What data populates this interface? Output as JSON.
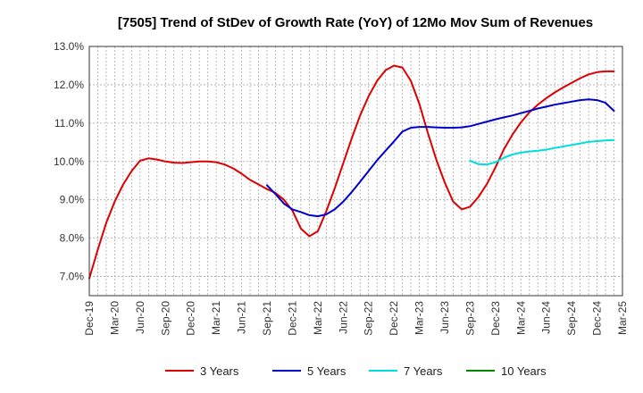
{
  "chart_data": {
    "type": "line",
    "title": "[7505]  Trend of StDev of Growth Rate (YoY) of 12Mo Mov Sum of Revenues",
    "xlabel": "",
    "ylabel": "",
    "ylim": [
      6.5,
      13.0
    ],
    "y_ticks": [
      7.0,
      8.0,
      9.0,
      10.0,
      11.0,
      12.0,
      13.0
    ],
    "y_tick_labels": [
      "7.0%",
      "8.0%",
      "9.0%",
      "10.0%",
      "11.0%",
      "12.0%",
      "13.0%"
    ],
    "x_tick_labels": [
      "Dec-19",
      "Mar-20",
      "Jun-20",
      "Sep-20",
      "Dec-20",
      "Mar-21",
      "Jun-21",
      "Sep-21",
      "Dec-21",
      "Mar-22",
      "Jun-22",
      "Sep-22",
      "Dec-22",
      "Mar-23",
      "Jun-23",
      "Sep-23",
      "Dec-23",
      "Mar-24",
      "Jun-24",
      "Sep-24",
      "Dec-24",
      "Mar-25"
    ],
    "x_unit": "months since Dec-19",
    "grid": true,
    "legend_position": "bottom",
    "series": [
      {
        "name": "3 Years",
        "color": "#dd0000",
        "points": [
          [
            0,
            6.95
          ],
          [
            1,
            7.7
          ],
          [
            2,
            8.4
          ],
          [
            3,
            8.95
          ],
          [
            4,
            9.4
          ],
          [
            5,
            9.75
          ],
          [
            6,
            10.02
          ],
          [
            7,
            10.08
          ],
          [
            8,
            10.05
          ],
          [
            9,
            10.0
          ],
          [
            10,
            9.97
          ],
          [
            11,
            9.96
          ],
          [
            12,
            9.98
          ],
          [
            13,
            10.0
          ],
          [
            14,
            10.0
          ],
          [
            15,
            9.98
          ],
          [
            16,
            9.92
          ],
          [
            17,
            9.82
          ],
          [
            18,
            9.68
          ],
          [
            19,
            9.52
          ],
          [
            20,
            9.4
          ],
          [
            21,
            9.28
          ],
          [
            22,
            9.18
          ],
          [
            23,
            9.0
          ],
          [
            24,
            8.72
          ],
          [
            25,
            8.25
          ],
          [
            26,
            8.05
          ],
          [
            27,
            8.18
          ],
          [
            28,
            8.7
          ],
          [
            29,
            9.3
          ],
          [
            30,
            9.95
          ],
          [
            31,
            10.6
          ],
          [
            32,
            11.2
          ],
          [
            33,
            11.7
          ],
          [
            34,
            12.1
          ],
          [
            35,
            12.38
          ],
          [
            36,
            12.5
          ],
          [
            37,
            12.45
          ],
          [
            38,
            12.1
          ],
          [
            39,
            11.5
          ],
          [
            40,
            10.75
          ],
          [
            41,
            10.05
          ],
          [
            42,
            9.45
          ],
          [
            43,
            8.95
          ],
          [
            44,
            8.75
          ],
          [
            45,
            8.82
          ],
          [
            46,
            9.08
          ],
          [
            47,
            9.42
          ],
          [
            48,
            9.85
          ],
          [
            49,
            10.32
          ],
          [
            50,
            10.7
          ],
          [
            51,
            11.02
          ],
          [
            52,
            11.28
          ],
          [
            53,
            11.48
          ],
          [
            54,
            11.65
          ],
          [
            55,
            11.8
          ],
          [
            56,
            11.93
          ],
          [
            57,
            12.05
          ],
          [
            58,
            12.17
          ],
          [
            59,
            12.27
          ],
          [
            60,
            12.33
          ],
          [
            61,
            12.35
          ],
          [
            62,
            12.35
          ]
        ]
      },
      {
        "name": "5 Years",
        "color": "#0000cc",
        "points": [
          [
            21,
            9.38
          ],
          [
            22,
            9.15
          ],
          [
            23,
            8.9
          ],
          [
            24,
            8.75
          ],
          [
            25,
            8.68
          ],
          [
            26,
            8.6
          ],
          [
            27,
            8.57
          ],
          [
            28,
            8.62
          ],
          [
            29,
            8.75
          ],
          [
            30,
            8.95
          ],
          [
            31,
            9.2
          ],
          [
            32,
            9.47
          ],
          [
            33,
            9.75
          ],
          [
            34,
            10.03
          ],
          [
            35,
            10.28
          ],
          [
            36,
            10.52
          ],
          [
            37,
            10.78
          ],
          [
            38,
            10.88
          ],
          [
            39,
            10.9
          ],
          [
            40,
            10.9
          ],
          [
            41,
            10.89
          ],
          [
            42,
            10.88
          ],
          [
            43,
            10.88
          ],
          [
            44,
            10.89
          ],
          [
            45,
            10.92
          ],
          [
            46,
            10.98
          ],
          [
            47,
            11.04
          ],
          [
            48,
            11.1
          ],
          [
            49,
            11.15
          ],
          [
            50,
            11.2
          ],
          [
            51,
            11.26
          ],
          [
            52,
            11.32
          ],
          [
            53,
            11.38
          ],
          [
            54,
            11.43
          ],
          [
            55,
            11.48
          ],
          [
            56,
            11.52
          ],
          [
            57,
            11.56
          ],
          [
            58,
            11.6
          ],
          [
            59,
            11.62
          ],
          [
            60,
            11.6
          ],
          [
            61,
            11.53
          ],
          [
            62,
            11.32
          ]
        ]
      },
      {
        "name": "7 Years",
        "color": "#00dddd",
        "points": [
          [
            45,
            10.02
          ],
          [
            46,
            9.93
          ],
          [
            47,
            9.92
          ],
          [
            48,
            9.98
          ],
          [
            49,
            10.1
          ],
          [
            50,
            10.18
          ],
          [
            51,
            10.23
          ],
          [
            52,
            10.26
          ],
          [
            53,
            10.28
          ],
          [
            54,
            10.31
          ],
          [
            55,
            10.35
          ],
          [
            56,
            10.39
          ],
          [
            57,
            10.43
          ],
          [
            58,
            10.47
          ],
          [
            59,
            10.51
          ],
          [
            60,
            10.53
          ],
          [
            61,
            10.55
          ],
          [
            62,
            10.56
          ]
        ]
      },
      {
        "name": "10 Years",
        "color": "#008800",
        "points": []
      }
    ]
  }
}
